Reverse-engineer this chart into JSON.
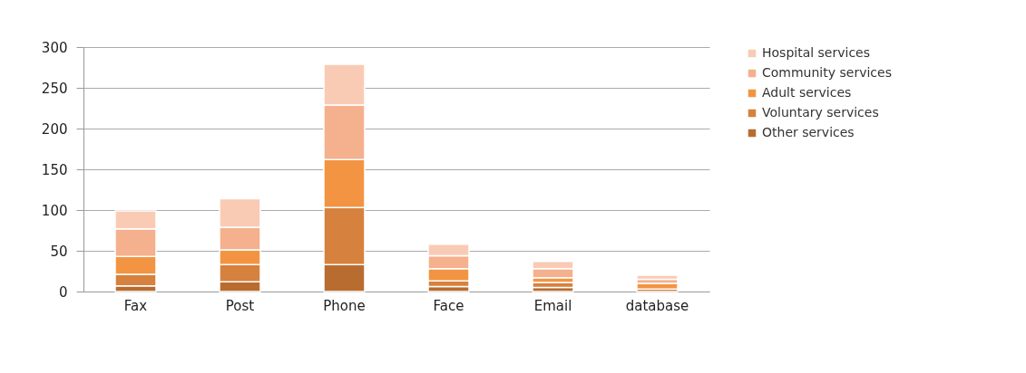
{
  "chart_data": {
    "type": "bar",
    "stacked": true,
    "categories": [
      "Fax",
      "Post",
      "Phone",
      "Face",
      "Email",
      "database"
    ],
    "series": [
      {
        "name": "Other services",
        "color": "#b96c30",
        "values": [
          7,
          12,
          33,
          6,
          5,
          null
        ]
      },
      {
        "name": "Voluntary services",
        "color": "#d6813d",
        "values": [
          14,
          21,
          70,
          7,
          6,
          3
        ]
      },
      {
        "name": "Adult services",
        "color": "#f39443",
        "values": [
          22,
          18,
          59,
          15,
          6,
          7
        ]
      },
      {
        "name": "Community services",
        "color": "#f5b08d",
        "values": [
          34,
          28,
          67,
          16,
          11,
          5
        ]
      },
      {
        "name": "Hospital services",
        "color": "#f9cbb5",
        "values": [
          22,
          35,
          50,
          14,
          9,
          5
        ]
      }
    ],
    "ylim": [
      0,
      300
    ],
    "yticks": [
      0,
      50,
      100,
      150,
      200,
      250,
      300
    ],
    "grid": "y",
    "legend": "right"
  }
}
